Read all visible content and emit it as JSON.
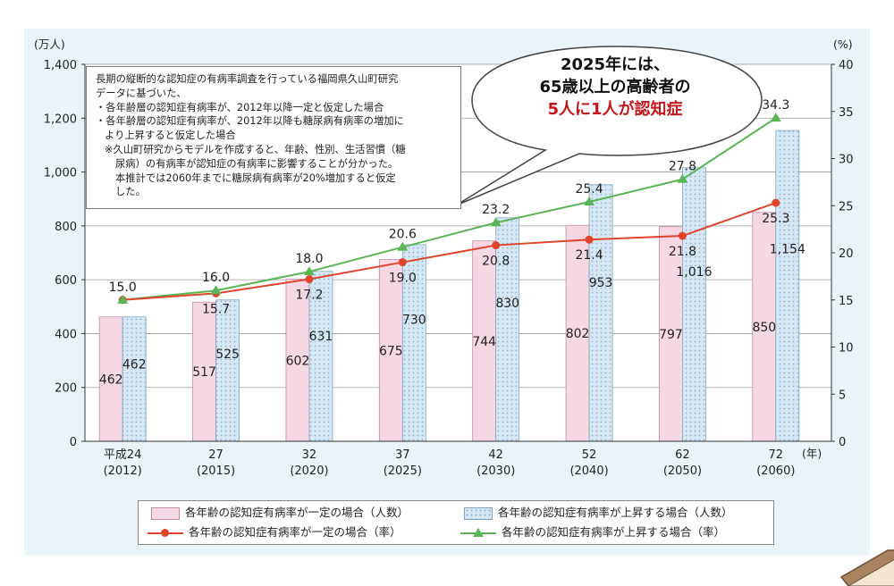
{
  "chart_data": {
    "type": "bar+line",
    "categories": [
      "平成24\n(2012)",
      "27\n(2015)",
      "32\n(2020)",
      "37\n(2025)",
      "42\n(2030)",
      "52\n(2040)",
      "62\n(2050)",
      "72\n(2060)"
    ],
    "series": [
      {
        "name": "各年齢の認知症有病率が一定の場合（人数）",
        "kind": "bar",
        "axis": "left",
        "values": [
          462,
          517,
          602,
          675,
          744,
          802,
          797,
          850
        ]
      },
      {
        "name": "各年齢の認知症有病率が上昇する場合（人数）",
        "kind": "bar",
        "axis": "left",
        "values": [
          462,
          525,
          631,
          730,
          830,
          953,
          1016,
          1154
        ]
      },
      {
        "name": "各年齢の認知症有病率が一定の場合（率）",
        "kind": "line",
        "axis": "right",
        "values": [
          15.0,
          15.7,
          17.2,
          19.0,
          20.8,
          21.4,
          21.8,
          25.3
        ]
      },
      {
        "name": "各年齢の認知症有病率が上昇する場合（率）",
        "kind": "line",
        "axis": "right",
        "values": [
          15.0,
          16.0,
          18.0,
          20.6,
          23.2,
          25.4,
          27.8,
          34.3
        ]
      }
    ],
    "left_unit": "(万人)",
    "right_unit": "(%)",
    "x_unit": "(年)",
    "ylim_left": [
      0,
      1400
    ],
    "ylim_right": [
      0,
      40
    ],
    "yticks_left": [
      "0",
      "200",
      "400",
      "600",
      "800",
      "1,000",
      "1,200",
      "1,400"
    ],
    "yticks_right": [
      "0",
      "5",
      "10",
      "15",
      "20",
      "25",
      "30",
      "35",
      "40"
    ],
    "grid": true,
    "colors": {
      "bar_const": "#f6d7e4",
      "bar_const_edge": "#c78aa6",
      "bar_rise": "#d6e8f5",
      "bar_rise_edge": "#7ea5c4",
      "line_const": "#e0442a",
      "line_rise": "#59b556"
    }
  },
  "note": {
    "lines": [
      "長期の縦断的な認知症の有病率調査を行っている福岡県久山町研究",
      "データに基づいた、",
      "・各年齢層の認知症有病率が、2012年以降一定と仮定した場合",
      "・各年齢層の認知症有病率が、2012年以降も糖尿病有病率の増加に",
      "より上昇すると仮定した場合",
      "※久山町研究からモデルを作成すると、年齢、性別、生活習慣（糖",
      "尿病）の有病率が認知症の有病率に影響することが分かった。",
      "本推計では2060年までに糖尿病有病率が20%増加すると仮定",
      "した。"
    ]
  },
  "callout": {
    "line1": "2025年には、",
    "line2": "65歳以上の高齢者の",
    "line3": "5人に1人が認知症"
  },
  "legend": {
    "bar_const": "各年齢の認知症有病率が一定の場合（人数）",
    "bar_rise": "各年齢の認知症有病率が上昇する場合（人数）",
    "line_const": "各年齢の認知症有病率が一定の場合（率）",
    "line_rise": "各年齢の認知症有病率が上昇する場合（率）"
  }
}
